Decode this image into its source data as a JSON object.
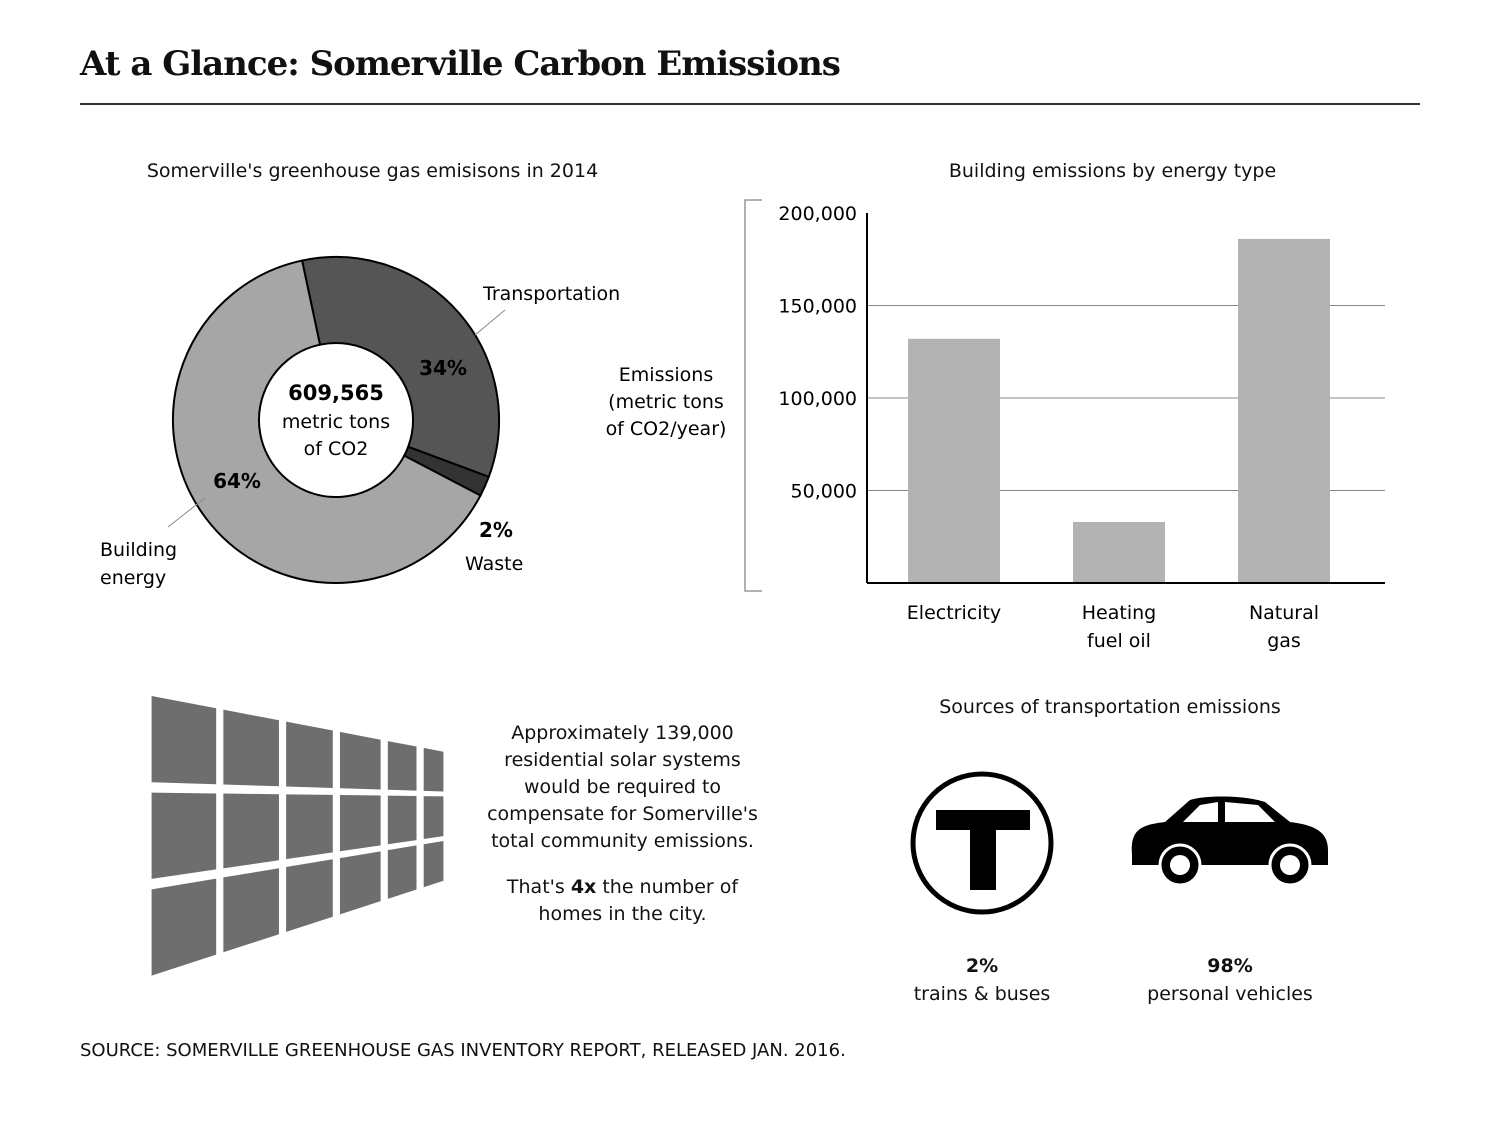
{
  "title": "At a Glance: Somerville Carbon Emissions",
  "source": "SOURCE: SOMERVILLE GREENHOUSE GAS INVENTORY REPORT, RELEASED JAN. 2016.",
  "chart_data": [
    {
      "type": "pie",
      "title": "Somerville's greenhouse gas emisisons in 2014",
      "center_value": "609,565",
      "center_unit_line1": "metric tons",
      "center_unit_line2": "of CO2",
      "slices": [
        {
          "name": "Transportation",
          "value": 34,
          "label": "34%",
          "color": "#555555"
        },
        {
          "name": "Waste",
          "value": 2,
          "label": "2%",
          "color": "#333333"
        },
        {
          "name": "Building energy",
          "value": 64,
          "label": "64%",
          "color": "#a6a6a6",
          "name_line1": "Building",
          "name_line2": "energy"
        }
      ]
    },
    {
      "type": "bar",
      "title": "Building emissions by energy type",
      "ylabel_lines": [
        "Emissions",
        "(metric tons",
        "of CO2/year)"
      ],
      "categories": [
        [
          "Electricity"
        ],
        [
          "Heating",
          "fuel oil"
        ],
        [
          "Natural",
          "gas"
        ]
      ],
      "values": [
        132000,
        33000,
        186000
      ],
      "ylim": [
        0,
        200000
      ],
      "yticks": [
        50000,
        100000,
        150000,
        200000
      ],
      "ytick_labels": [
        "50,000",
        "100,000",
        "150,000",
        "200,000"
      ],
      "grid": true,
      "bar_color": "#b3b3b3"
    }
  ],
  "solar": {
    "lines": [
      "Approximately 139,000",
      "residential solar systems",
      "would be required to",
      "compensate for Somerville's",
      "total community emissions."
    ],
    "line2_pre": "That's ",
    "line2_bold": "4x",
    "line2_post": " the number of",
    "line3": "homes in the city.",
    "icon": "solar-panel-grid"
  },
  "transport": {
    "title": "Sources of transportation emissions",
    "items": [
      {
        "icon": "mbta-t-icon",
        "pct": "2%",
        "label": "trains & buses"
      },
      {
        "icon": "car-icon",
        "pct": "98%",
        "label": "personal vehicles"
      }
    ]
  }
}
